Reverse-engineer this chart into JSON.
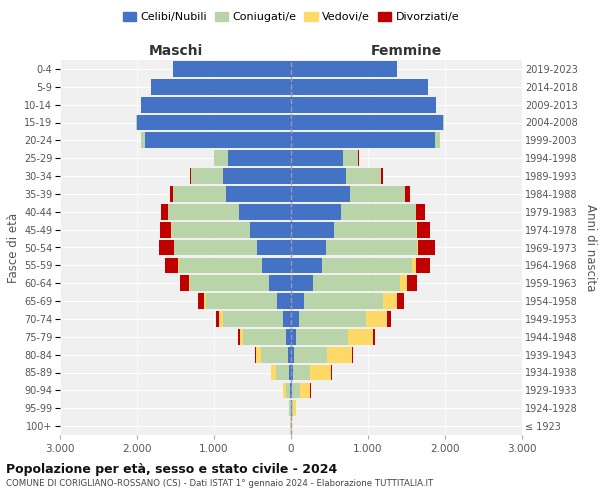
{
  "age_groups": [
    "100+",
    "95-99",
    "90-94",
    "85-89",
    "80-84",
    "75-79",
    "70-74",
    "65-69",
    "60-64",
    "55-59",
    "50-54",
    "45-49",
    "40-44",
    "35-39",
    "30-34",
    "25-29",
    "20-24",
    "15-19",
    "10-14",
    "5-9",
    "0-4"
  ],
  "birth_years": [
    "≤ 1923",
    "1924-1928",
    "1929-1933",
    "1934-1938",
    "1939-1943",
    "1944-1948",
    "1949-1953",
    "1954-1958",
    "1959-1963",
    "1964-1968",
    "1969-1973",
    "1974-1978",
    "1979-1983",
    "1984-1988",
    "1989-1993",
    "1994-1998",
    "1999-2003",
    "2004-2008",
    "2009-2013",
    "2014-2018",
    "2019-2023"
  ],
  "male": {
    "celibe": [
      3,
      5,
      10,
      20,
      40,
      60,
      100,
      180,
      280,
      380,
      440,
      530,
      680,
      850,
      880,
      820,
      1900,
      2000,
      1950,
      1820,
      1530
    ],
    "coniugato": [
      3,
      15,
      60,
      180,
      350,
      560,
      780,
      930,
      1030,
      1080,
      1080,
      1020,
      920,
      680,
      420,
      180,
      45,
      8,
      3,
      1,
      0
    ],
    "vedovo": [
      1,
      8,
      35,
      55,
      70,
      45,
      55,
      25,
      15,
      8,
      4,
      2,
      1,
      1,
      0,
      0,
      0,
      0,
      0,
      0,
      0
    ],
    "divorziato": [
      0,
      0,
      2,
      4,
      8,
      18,
      35,
      70,
      120,
      165,
      185,
      155,
      90,
      45,
      18,
      4,
      1,
      0,
      0,
      0,
      0
    ]
  },
  "female": {
    "nubile": [
      5,
      8,
      12,
      25,
      45,
      65,
      100,
      175,
      290,
      400,
      460,
      555,
      650,
      760,
      710,
      670,
      1870,
      1980,
      1880,
      1780,
      1380
    ],
    "coniugata": [
      5,
      20,
      100,
      220,
      420,
      670,
      870,
      1020,
      1120,
      1170,
      1170,
      1070,
      970,
      720,
      460,
      205,
      65,
      12,
      4,
      1,
      0
    ],
    "vedova": [
      8,
      35,
      140,
      280,
      330,
      330,
      280,
      185,
      90,
      55,
      25,
      15,
      8,
      4,
      1,
      0,
      0,
      0,
      0,
      0,
      0
    ],
    "divorziata": [
      0,
      0,
      4,
      8,
      12,
      25,
      55,
      90,
      135,
      185,
      210,
      165,
      110,
      55,
      22,
      7,
      1,
      0,
      0,
      0,
      0
    ]
  },
  "colors": {
    "celibe": "#4472C4",
    "coniugato": "#b8d4a8",
    "vedovo": "#FFD966",
    "divorziato": "#C00000"
  },
  "title": "Popolazione per età, sesso e stato civile - 2024",
  "subtitle": "COMUNE DI CORIGLIANO-ROSSANO (CS) - Dati ISTAT 1° gennaio 2024 - Elaborazione TUTTITALIA.IT",
  "xlabel_left": "Maschi",
  "xlabel_right": "Femmine",
  "ylabel_left": "Fasce di età",
  "ylabel_right": "Anni di nascita",
  "xlim": 3000,
  "legend_labels": [
    "Celibi/Nubili",
    "Coniugati/e",
    "Vedovi/e",
    "Divorziati/e"
  ],
  "bg_color": "#ffffff",
  "plot_bg": "#f0f0f0",
  "grid_color": "#cccccc"
}
